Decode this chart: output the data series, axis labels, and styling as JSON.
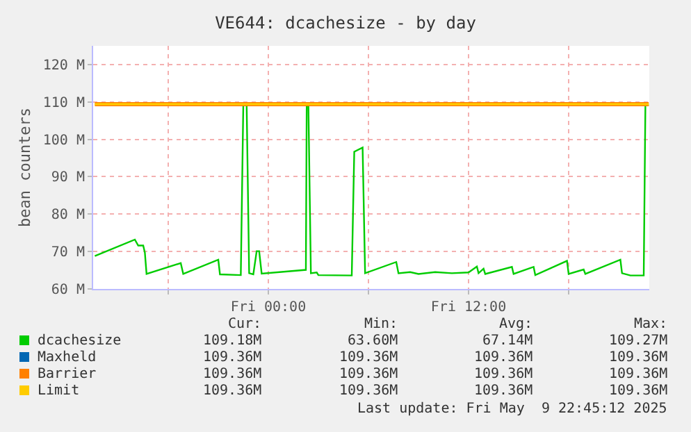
{
  "chart_data": {
    "type": "line",
    "title": "VE644: dcachesize - by day",
    "ylabel": "bean counters",
    "xlim": [
      "--05-08T13:30",
      "--05-09T22:50"
    ],
    "xticks": [
      {
        "value": "--05-08T18:00",
        "label": null
      },
      {
        "value": "--05-09T00:00",
        "label": "Fri 00:00"
      },
      {
        "value": "--05-09T06:00",
        "label": null
      },
      {
        "value": "--05-09T12:00",
        "label": "Fri 12:00"
      },
      {
        "value": "--05-09T18:00",
        "label": null
      }
    ],
    "ylim": [
      60,
      125
    ],
    "yticks": [
      {
        "value": 60,
        "label": "60 M"
      },
      {
        "value": 70,
        "label": "70 M"
      },
      {
        "value": 80,
        "label": "80 M"
      },
      {
        "value": 90,
        "label": "90 M"
      },
      {
        "value": 100,
        "label": "100 M"
      },
      {
        "value": 110,
        "label": "110 M"
      },
      {
        "value": 120,
        "label": "120 M"
      }
    ],
    "grid": true,
    "legend": "bottom left",
    "marker": "none",
    "line_style": "solid",
    "series": [
      {
        "name": "dcachesize",
        "color": "#00cc00",
        "x": [
          "--05-08T13:36",
          "--05-08T16:00",
          "--05-08T16:12",
          "--05-08T16:30",
          "--05-08T16:36",
          "--05-08T16:42",
          "--05-08T18:45",
          "--05-08T18:54",
          "--05-08T21:00",
          "--05-08T21:06",
          "--05-08T22:21",
          "--05-08T22:30",
          "--05-08T22:42",
          "--05-08T22:51",
          "--05-08T23:06",
          "--05-08T23:18",
          "--05-08T23:27",
          "--05-08T23:36",
          "--05-09T02:15",
          "--05-09T02:18",
          "--05-09T02:24",
          "--05-09T02:33",
          "--05-09T02:54",
          "--05-09T03:00",
          "--05-09T05:00",
          "--05-09T05:09",
          "--05-09T05:39",
          "--05-09T05:48",
          "--05-09T07:40",
          "--05-09T07:48",
          "--05-09T08:30",
          "--05-09T09:00",
          "--05-09T10:00",
          "--05-09T11:00",
          "--05-09T12:00",
          "--05-09T12:30",
          "--05-09T12:36",
          "--05-09T12:54",
          "--05-09T13:00",
          "--05-09T14:36",
          "--05-09T14:42",
          "--05-09T15:54",
          "--05-09T16:00",
          "--05-09T17:54",
          "--05-09T18:00",
          "--05-09T18:54",
          "--05-09T19:00",
          "--05-09T21:06",
          "--05-09T21:12",
          "--05-09T21:42",
          "--05-09T22:30",
          "--05-09T22:36",
          "--05-09T22:48"
        ],
        "values": [
          68.8,
          73.2,
          71.6,
          71.6,
          69.7,
          64.0,
          66.9,
          64.0,
          67.8,
          63.9,
          63.7,
          109.3,
          109.3,
          64.2,
          63.9,
          70.1,
          70.1,
          64.1,
          65.1,
          109.3,
          109.3,
          64.2,
          64.4,
          63.7,
          63.6,
          96.7,
          97.8,
          64.2,
          67.2,
          64.2,
          64.5,
          64.0,
          64.5,
          64.2,
          64.4,
          66.0,
          64.2,
          65.4,
          64.0,
          65.9,
          64.0,
          65.9,
          63.7,
          67.5,
          64.0,
          65.2,
          64.0,
          67.8,
          64.2,
          63.6,
          63.6,
          109.0,
          109.2
        ]
      },
      {
        "name": "Maxheld",
        "color": "#0066b3"
      },
      {
        "name": "Barrier",
        "color": "#ff8000",
        "x": [
          "--05-08T13:36",
          "--05-09T22:48"
        ],
        "values": [
          109.4,
          109.4
        ]
      },
      {
        "name": "Limit",
        "color": "#ffcc00",
        "x": [
          "--05-08T13:36",
          "--05-09T22:48"
        ],
        "values": [
          109.4,
          109.4
        ]
      }
    ],
    "annotations": [
      "Cur:",
      "Min:",
      "Avg:",
      "Max:",
      "109.18M",
      "63.60M",
      "67.14M",
      "109.27M",
      "109.36M",
      "109.36M",
      "109.36M",
      "109.36M",
      "109.36M",
      "109.36M",
      "109.36M",
      "109.36M",
      "109.36M",
      "109.36M",
      "109.36M",
      "109.36M",
      "Last update: Fri May  9 22:45:12 2025"
    ]
  }
}
